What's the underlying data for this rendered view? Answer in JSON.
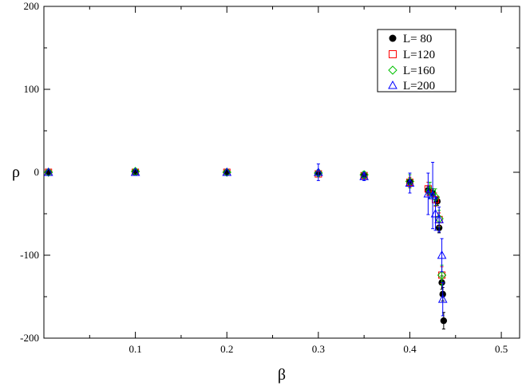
{
  "chart_data": {
    "type": "scatter",
    "xlabel": "β",
    "ylabel": "ρ",
    "xlim": [
      0.0,
      0.52
    ],
    "ylim": [
      -200,
      200
    ],
    "x_ticks": [
      0.1,
      0.2,
      0.3,
      0.4,
      0.5
    ],
    "y_ticks": [
      -200,
      -100,
      0,
      100,
      200
    ],
    "grid": false,
    "legend_position": "top-right",
    "legend_labels": {
      "L80": "L= 80",
      "L120": "L=120",
      "L160": "L=160",
      "L200": "L=200"
    },
    "series": [
      {
        "name": "L= 80",
        "marker": "filled-circle",
        "color": "#000000",
        "points": [
          {
            "x": 0.005,
            "y": 0
          },
          {
            "x": 0.1,
            "y": 0
          },
          {
            "x": 0.2,
            "y": 0
          },
          {
            "x": 0.3,
            "y": -1
          },
          {
            "x": 0.35,
            "y": -4
          },
          {
            "x": 0.4,
            "y": -12
          },
          {
            "x": 0.42,
            "y": -22
          },
          {
            "x": 0.425,
            "y": -25
          },
          {
            "x": 0.43,
            "y": -35
          },
          {
            "x": 0.432,
            "y": -67
          },
          {
            "x": 0.435,
            "y": -133
          },
          {
            "x": 0.436,
            "y": -147
          },
          {
            "x": 0.437,
            "y": -179
          }
        ],
        "errors": [
          0,
          0,
          0,
          2,
          2,
          4,
          5,
          5,
          5,
          6,
          8,
          8,
          10
        ]
      },
      {
        "name": "L=120",
        "marker": "open-square",
        "color": "#ff0000",
        "points": [
          {
            "x": 0.005,
            "y": 0
          },
          {
            "x": 0.1,
            "y": 0
          },
          {
            "x": 0.2,
            "y": 0
          },
          {
            "x": 0.3,
            "y": -2
          },
          {
            "x": 0.35,
            "y": -4
          },
          {
            "x": 0.4,
            "y": -12
          },
          {
            "x": 0.42,
            "y": -20
          },
          {
            "x": 0.428,
            "y": -33
          },
          {
            "x": 0.432,
            "y": -57
          },
          {
            "x": 0.435,
            "y": -124
          }
        ],
        "errors": [
          0,
          0,
          0,
          3,
          3,
          6,
          8,
          8,
          8,
          10
        ]
      },
      {
        "name": "L=160",
        "marker": "open-diamond",
        "color": "#00c000",
        "points": [
          {
            "x": 0.005,
            "y": 0
          },
          {
            "x": 0.1,
            "y": 1
          },
          {
            "x": 0.2,
            "y": 0
          },
          {
            "x": 0.3,
            "y": -1
          },
          {
            "x": 0.35,
            "y": -3
          },
          {
            "x": 0.4,
            "y": -11
          },
          {
            "x": 0.422,
            "y": -22
          },
          {
            "x": 0.428,
            "y": -30
          },
          {
            "x": 0.432,
            "y": -56
          },
          {
            "x": 0.435,
            "y": -124
          }
        ],
        "errors": [
          0,
          0,
          0,
          4,
          4,
          8,
          10,
          10,
          10,
          12
        ]
      },
      {
        "name": "L=200",
        "marker": "open-triangle",
        "color": "#0000ff",
        "points": [
          {
            "x": 0.005,
            "y": 0
          },
          {
            "x": 0.1,
            "y": 0
          },
          {
            "x": 0.2,
            "y": 0
          },
          {
            "x": 0.3,
            "y": 0
          },
          {
            "x": 0.35,
            "y": -5
          },
          {
            "x": 0.4,
            "y": -13
          },
          {
            "x": 0.42,
            "y": -26
          },
          {
            "x": 0.425,
            "y": -28
          },
          {
            "x": 0.428,
            "y": -50
          },
          {
            "x": 0.432,
            "y": -57
          },
          {
            "x": 0.435,
            "y": -100
          },
          {
            "x": 0.436,
            "y": -153
          }
        ],
        "errors": [
          0,
          0,
          0,
          10,
          5,
          12,
          25,
          40,
          20,
          15,
          20,
          20
        ]
      }
    ]
  }
}
